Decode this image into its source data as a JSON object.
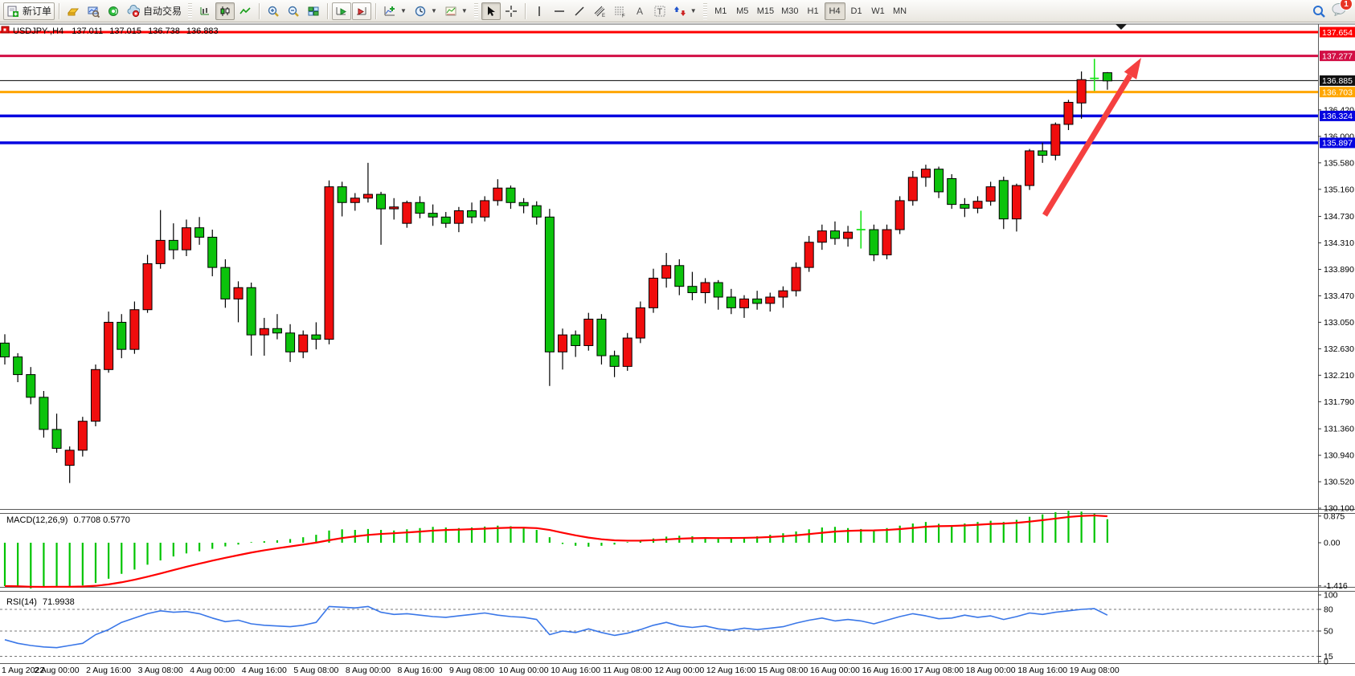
{
  "toolbar": {
    "new_order_label": "新订单",
    "auto_trading_label": "自动交易",
    "timeframes": [
      "M1",
      "M5",
      "M15",
      "M30",
      "H1",
      "H4",
      "D1",
      "W1",
      "MN"
    ],
    "active_timeframe": "H4",
    "notification_count": "1"
  },
  "chart_data": {
    "type": "candlestick+indicators",
    "symbol_title": "USDJPY-,H4",
    "ohlc": {
      "open": "137.011",
      "high": "137.015",
      "low": "136.738",
      "close": "136.883"
    },
    "colors": {
      "up": "#f00d0d",
      "down": "#0cc30c",
      "wick": "#000000",
      "doji": "#1ae31a",
      "rsi_line": "#3a77e8",
      "macd_hist": "#00c400",
      "macd_signal": "#ff0000",
      "arrow": "#f54040"
    },
    "y_ticks": [
      "136.420",
      "136.000",
      "135.580",
      "135.160",
      "134.730",
      "134.310",
      "133.890",
      "133.470",
      "133.050",
      "132.630",
      "132.210",
      "131.790",
      "131.360",
      "130.940",
      "130.520",
      "130.100"
    ],
    "price_lines": [
      {
        "label": "137.654",
        "price": 137.654,
        "color": "#fe0000",
        "width": 3
      },
      {
        "label": "137.277",
        "price": 137.277,
        "color": "#d20f45",
        "width": 3
      },
      {
        "label": "136.703",
        "price": 136.703,
        "color": "#ffa600",
        "width": 3
      },
      {
        "label": "136.324",
        "price": 136.324,
        "color": "#0505e0",
        "width": 3.5
      },
      {
        "label": "135.897",
        "price": 135.897,
        "color": "#0505e0",
        "width": 3.5
      }
    ],
    "bid_line": {
      "label": "136.885",
      "price": 136.885,
      "color": "#000000"
    },
    "x_labels": [
      {
        "text": "1 Aug 2022",
        "bar": 0
      },
      {
        "text": "2 Aug 00:00",
        "bar": 4
      },
      {
        "text": "2 Aug 16:00",
        "bar": 8
      },
      {
        "text": "3 Aug 08:00",
        "bar": 12
      },
      {
        "text": "4 Aug 00:00",
        "bar": 16
      },
      {
        "text": "4 Aug 16:00",
        "bar": 20
      },
      {
        "text": "5 Aug 08:00",
        "bar": 24
      },
      {
        "text": "8 Aug 00:00",
        "bar": 28
      },
      {
        "text": "8 Aug 16:00",
        "bar": 32
      },
      {
        "text": "9 Aug 08:00",
        "bar": 36
      },
      {
        "text": "10 Aug 00:00",
        "bar": 40
      },
      {
        "text": "10 Aug 16:00",
        "bar": 44
      },
      {
        "text": "11 Aug 08:00",
        "bar": 48
      },
      {
        "text": "12 Aug 00:00",
        "bar": 52
      },
      {
        "text": "12 Aug 16:00",
        "bar": 56
      },
      {
        "text": "15 Aug 08:00",
        "bar": 60
      },
      {
        "text": "16 Aug 00:00",
        "bar": 64
      },
      {
        "text": "16 Aug 16:00",
        "bar": 68
      },
      {
        "text": "17 Aug 08:00",
        "bar": 72
      },
      {
        "text": "18 Aug 00:00",
        "bar": 76
      },
      {
        "text": "18 Aug 16:00",
        "bar": 80
      },
      {
        "text": "19 Aug 08:00",
        "bar": 84
      }
    ],
    "candles": [
      [
        132.72,
        132.86,
        132.38,
        132.5
      ],
      [
        132.5,
        132.56,
        132.1,
        132.22
      ],
      [
        132.22,
        132.34,
        131.75,
        131.86
      ],
      [
        131.86,
        131.96,
        131.22,
        131.35
      ],
      [
        131.35,
        131.6,
        130.98,
        131.05
      ],
      [
        130.78,
        131.08,
        130.5,
        131.02
      ],
      [
        131.02,
        131.55,
        130.92,
        131.48
      ],
      [
        131.48,
        132.38,
        131.4,
        132.3
      ],
      [
        132.3,
        133.22,
        132.25,
        133.05
      ],
      [
        133.05,
        133.18,
        132.48,
        132.62
      ],
      [
        132.62,
        133.38,
        132.55,
        133.25
      ],
      [
        133.25,
        134.12,
        133.2,
        133.98
      ],
      [
        133.98,
        134.83,
        133.9,
        134.35
      ],
      [
        134.35,
        134.62,
        134.05,
        134.2
      ],
      [
        134.2,
        134.68,
        134.1,
        134.55
      ],
      [
        134.55,
        134.72,
        134.28,
        134.4
      ],
      [
        134.4,
        134.52,
        133.78,
        133.92
      ],
      [
        133.92,
        134.05,
        133.28,
        133.42
      ],
      [
        133.42,
        133.7,
        133.05,
        133.6
      ],
      [
        133.6,
        133.68,
        132.52,
        132.85
      ],
      [
        132.85,
        133.12,
        132.52,
        132.95
      ],
      [
        132.95,
        133.18,
        132.78,
        132.88
      ],
      [
        132.88,
        133.02,
        132.42,
        132.58
      ],
      [
        132.58,
        132.92,
        132.48,
        132.85
      ],
      [
        132.85,
        133.05,
        132.62,
        132.78
      ],
      [
        132.78,
        135.3,
        132.7,
        135.2
      ],
      [
        135.2,
        135.28,
        134.73,
        134.95
      ],
      [
        134.95,
        135.1,
        134.82,
        135.02
      ],
      [
        135.02,
        135.58,
        134.95,
        135.08
      ],
      [
        135.08,
        135.12,
        134.28,
        134.85
      ],
      [
        134.85,
        135.02,
        134.68,
        134.88
      ],
      [
        134.62,
        134.98,
        134.55,
        134.95
      ],
      [
        134.95,
        135.05,
        134.7,
        134.78
      ],
      [
        134.78,
        134.92,
        134.58,
        134.72
      ],
      [
        134.72,
        134.8,
        134.55,
        134.62
      ],
      [
        134.62,
        134.88,
        134.48,
        134.82
      ],
      [
        134.82,
        134.95,
        134.62,
        134.72
      ],
      [
        134.72,
        135.05,
        134.65,
        134.98
      ],
      [
        134.98,
        135.32,
        134.9,
        135.18
      ],
      [
        135.18,
        135.22,
        134.85,
        134.95
      ],
      [
        134.95,
        135.02,
        134.78,
        134.9
      ],
      [
        134.9,
        134.97,
        134.6,
        134.72
      ],
      [
        134.72,
        134.85,
        132.04,
        132.58
      ],
      [
        132.58,
        132.95,
        132.3,
        132.85
      ],
      [
        132.85,
        132.92,
        132.5,
        132.68
      ],
      [
        132.68,
        133.2,
        132.6,
        133.1
      ],
      [
        133.1,
        133.18,
        132.38,
        132.52
      ],
      [
        132.52,
        132.6,
        132.18,
        132.35
      ],
      [
        132.35,
        132.88,
        132.28,
        132.8
      ],
      [
        132.8,
        133.38,
        132.72,
        133.28
      ],
      [
        133.28,
        133.9,
        133.2,
        133.75
      ],
      [
        133.75,
        134.15,
        133.6,
        133.95
      ],
      [
        133.95,
        134.05,
        133.48,
        133.62
      ],
      [
        133.62,
        133.85,
        133.4,
        133.52
      ],
      [
        133.52,
        133.75,
        133.35,
        133.68
      ],
      [
        133.68,
        133.72,
        133.25,
        133.45
      ],
      [
        133.45,
        133.58,
        133.18,
        133.28
      ],
      [
        133.28,
        133.48,
        133.12,
        133.42
      ],
      [
        133.42,
        133.55,
        133.25,
        133.35
      ],
      [
        133.35,
        133.52,
        133.22,
        133.45
      ],
      [
        133.45,
        133.62,
        133.28,
        133.55
      ],
      [
        133.55,
        134.0,
        133.46,
        133.92
      ],
      [
        133.92,
        134.42,
        133.85,
        134.32
      ],
      [
        134.32,
        134.6,
        134.2,
        134.5
      ],
      [
        134.5,
        134.65,
        134.28,
        134.38
      ],
      [
        134.38,
        134.58,
        134.25,
        134.48
      ],
      [
        134.52,
        134.82,
        134.22,
        134.52
      ],
      [
        134.52,
        134.6,
        134.02,
        134.12
      ],
      [
        134.12,
        134.6,
        134.05,
        134.52
      ],
      [
        134.52,
        135.05,
        134.45,
        134.98
      ],
      [
        134.98,
        135.45,
        134.9,
        135.35
      ],
      [
        135.35,
        135.55,
        135.2,
        135.48
      ],
      [
        135.48,
        135.52,
        135.02,
        135.12
      ],
      [
        135.33,
        135.4,
        134.85,
        134.92
      ],
      [
        134.92,
        135.02,
        134.72,
        134.86
      ],
      [
        134.86,
        135.05,
        134.78,
        134.97
      ],
      [
        134.97,
        135.28,
        134.9,
        135.2
      ],
      [
        135.3,
        135.36,
        134.53,
        134.69
      ],
      [
        134.69,
        135.25,
        134.49,
        135.22
      ],
      [
        135.22,
        135.8,
        135.15,
        135.77
      ],
      [
        135.77,
        135.9,
        135.58,
        135.7
      ],
      [
        135.7,
        136.22,
        135.62,
        136.19
      ],
      [
        136.19,
        136.58,
        136.1,
        136.54
      ],
      [
        136.53,
        137.03,
        136.28,
        136.9
      ],
      [
        136.92,
        137.23,
        136.72,
        136.92
      ],
      [
        137.01,
        137.02,
        136.74,
        136.88
      ]
    ],
    "lime_doji_bars": [
      66,
      84
    ],
    "macd": {
      "name": "MACD(12,26,9)",
      "values_text": "0.7708 0.5770",
      "ticks": [
        {
          "label": "0.875",
          "v": 0.875
        },
        {
          "label": "0.00",
          "v": 0
        },
        {
          "label": "-1.416",
          "v": -1.416
        }
      ],
      "histogram": [
        -1.42,
        -1.46,
        -1.5,
        -1.47,
        -1.42,
        -1.45,
        -1.4,
        -1.32,
        -1.18,
        -1.02,
        -0.88,
        -0.72,
        -0.58,
        -0.45,
        -0.35,
        -0.28,
        -0.2,
        -0.12,
        -0.06,
        0.02,
        0.05,
        0.08,
        0.12,
        0.18,
        0.26,
        0.4,
        0.44,
        0.42,
        0.45,
        0.42,
        0.4,
        0.44,
        0.48,
        0.52,
        0.5,
        0.48,
        0.5,
        0.53,
        0.56,
        0.54,
        0.5,
        0.42,
        0.18,
        -0.04,
        -0.1,
        -0.13,
        -0.1,
        -0.06,
        0.02,
        0.08,
        0.14,
        0.2,
        0.23,
        0.21,
        0.18,
        0.15,
        0.16,
        0.18,
        0.21,
        0.26,
        0.31,
        0.37,
        0.44,
        0.5,
        0.52,
        0.48,
        0.45,
        0.42,
        0.48,
        0.56,
        0.63,
        0.68,
        0.62,
        0.58,
        0.63,
        0.68,
        0.72,
        0.68,
        0.75,
        0.85,
        0.93,
        1.0,
        1.05,
        1.02,
        0.95,
        0.77
      ]
    },
    "rsi": {
      "name": "RSI(14)",
      "value_text": "71.9938",
      "levels": [
        80,
        50,
        15
      ],
      "ticks": [
        {
          "label": "100",
          "v": 100
        },
        {
          "label": "80",
          "v": 80
        },
        {
          "label": "50",
          "v": 50
        },
        {
          "label": "15",
          "v": 15
        },
        {
          "label": "0",
          "v": 0
        }
      ],
      "series": [
        38,
        33,
        30,
        28,
        27,
        30,
        33,
        45,
        52,
        62,
        68,
        74,
        78,
        76,
        77,
        74,
        68,
        63,
        65,
        60,
        58,
        57,
        56,
        58,
        62,
        84,
        83,
        82,
        84,
        76,
        73,
        74,
        72,
        70,
        69,
        71,
        73,
        75,
        72,
        70,
        69,
        66,
        45,
        50,
        48,
        53,
        48,
        44,
        47,
        52,
        58,
        62,
        57,
        55,
        57,
        53,
        51,
        54,
        52,
        54,
        56,
        61,
        65,
        68,
        64,
        66,
        64,
        60,
        65,
        70,
        74,
        71,
        67,
        68,
        72,
        69,
        71,
        66,
        70,
        75,
        73,
        76,
        78,
        80,
        81,
        72
      ]
    }
  }
}
